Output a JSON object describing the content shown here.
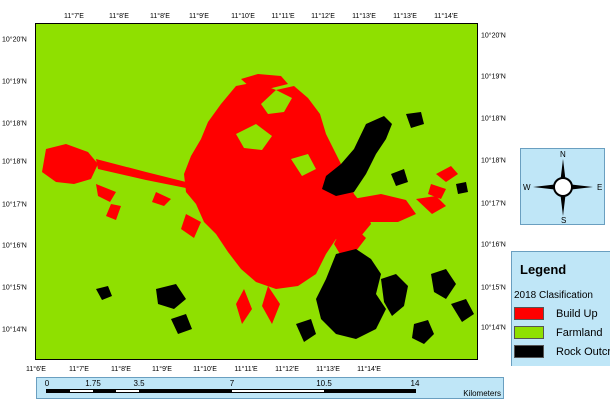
{
  "map": {
    "lon_labels": [
      "11°6'E",
      "11°7'E",
      "11°8'E",
      "11°9'E",
      "11°10'E",
      "11°11'E",
      "11°12'E",
      "11°13'E",
      "11°14'E"
    ],
    "lon_labels_top": [
      "11°7'E",
      "11°8'E",
      "11°8'E",
      "11°9'E",
      "11°10'E",
      "11°11'E",
      "11°12'E",
      "11°13'E",
      "11°13'E",
      "11°14'E"
    ],
    "lat_labels_left": [
      "10°20'N",
      "10°19'N",
      "10°18'N",
      "10°18'N",
      "10°17'N",
      "10°16'N",
      "10°15'N",
      "10°14'N"
    ],
    "lat_labels_right": [
      "10°20'N",
      "10°19'N",
      "10°18'N",
      "10°18'N",
      "10°17'N",
      "10°16'N",
      "10°15'N",
      "10°14'N"
    ],
    "colors": {
      "build_up": "#ff0000",
      "farmland": "#8fe000",
      "rock_outcrop": "#000000"
    }
  },
  "compass": {
    "n": "N",
    "s": "S",
    "e": "E",
    "w": "W"
  },
  "legend": {
    "title": "Legend",
    "subtitle": "2018 Clasification",
    "items": [
      {
        "label": "Build Up",
        "color": "#ff0000"
      },
      {
        "label": "Farmland",
        "color": "#8fe000"
      },
      {
        "label": "Rock Outcrop",
        "color": "#000000"
      }
    ]
  },
  "scale": {
    "labels": [
      "0",
      "1.75",
      "3.5",
      "7",
      "10.5",
      "14"
    ],
    "units": "Kilometers"
  }
}
